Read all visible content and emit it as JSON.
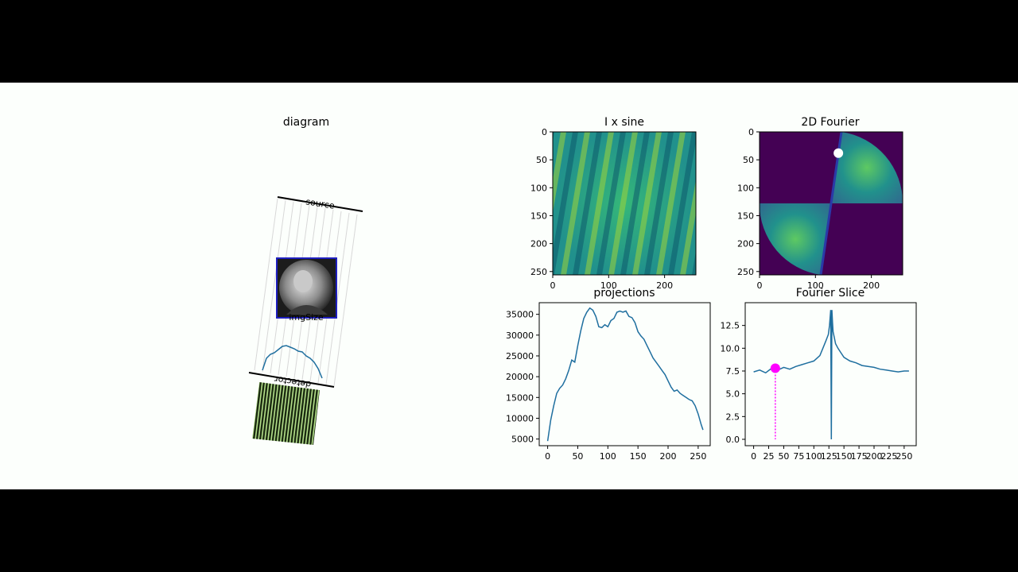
{
  "colors": {
    "frame_bg": "#000000",
    "figure_bg": "#fcfffc",
    "line": "#1f6f9f",
    "viridis_dark": "#440154",
    "viridis_mid": "#21918c",
    "viridis_bright": "#fde725",
    "marker": "#ff00ff",
    "white_marker": "#ffffff"
  },
  "diagram": {
    "title": "diagram",
    "source_label": "source",
    "detector_label": "detector",
    "imgsize_label": "imgSize"
  },
  "chart_data": [
    {
      "id": "i_x_sine",
      "type": "heatmap",
      "title": "I x sine",
      "x_ticks": [
        "0",
        "100",
        "200"
      ],
      "y_ticks": [
        "0",
        "50",
        "100",
        "150",
        "200",
        "250"
      ],
      "xlim": [
        0,
        256
      ],
      "ylim": [
        256,
        0
      ]
    },
    {
      "id": "fourier_2d",
      "type": "heatmap",
      "title": "2D Fourier",
      "x_ticks": [
        "0",
        "100",
        "200"
      ],
      "y_ticks": [
        "0",
        "50",
        "100",
        "150",
        "200",
        "250"
      ],
      "xlim": [
        0,
        256
      ],
      "ylim": [
        256,
        0
      ],
      "marker": {
        "x": 141,
        "y": 38
      }
    },
    {
      "id": "projections",
      "type": "line",
      "title": "projections",
      "xlim": [
        -14,
        270
      ],
      "ylim": [
        3400,
        37800
      ],
      "x_ticks": [
        0,
        50,
        100,
        150,
        200,
        250
      ],
      "y_ticks": [
        5000,
        10000,
        15000,
        20000,
        25000,
        30000,
        35000
      ],
      "x": [
        0,
        5,
        10,
        15,
        20,
        25,
        30,
        35,
        40,
        45,
        50,
        55,
        60,
        65,
        70,
        75,
        80,
        85,
        90,
        95,
        100,
        105,
        110,
        115,
        120,
        125,
        130,
        135,
        140,
        145,
        150,
        155,
        160,
        165,
        170,
        175,
        180,
        185,
        190,
        195,
        200,
        205,
        210,
        215,
        220,
        225,
        230,
        235,
        240,
        245,
        250,
        255,
        258
      ],
      "y": [
        4500,
        9500,
        13000,
        16000,
        17200,
        18000,
        19500,
        21500,
        24000,
        23500,
        27500,
        31000,
        34000,
        35500,
        36500,
        36000,
        34500,
        32000,
        31800,
        32500,
        32000,
        33500,
        34000,
        35500,
        35800,
        35500,
        35800,
        34500,
        34200,
        33000,
        30800,
        29800,
        29000,
        27500,
        26000,
        24500,
        23500,
        22500,
        21500,
        20500,
        19000,
        17500,
        16500,
        16800,
        16000,
        15500,
        15000,
        14500,
        14200,
        13000,
        11000,
        8500,
        7200
      ]
    },
    {
      "id": "fourier_slice",
      "type": "line",
      "title": "Fourier Slice",
      "xlim": [
        -14,
        270
      ],
      "ylim": [
        -0.7,
        15
      ],
      "x_ticks": [
        0,
        25,
        50,
        75,
        100,
        125,
        150,
        175,
        200,
        225,
        250
      ],
      "y_ticks": [
        0.0,
        2.5,
        5.0,
        7.5,
        10.0,
        12.5
      ],
      "y_tick_labels": [
        "0.0",
        "2.5",
        "5.0",
        "7.5",
        "10.0",
        "12.5"
      ],
      "x": [
        0,
        10,
        20,
        30,
        40,
        50,
        60,
        70,
        80,
        90,
        100,
        110,
        115,
        120,
        124,
        126,
        128,
        129,
        130,
        131,
        132,
        134,
        136,
        140,
        145,
        150,
        160,
        170,
        180,
        190,
        200,
        210,
        220,
        230,
        240,
        250,
        258
      ],
      "y": [
        7.4,
        7.6,
        7.3,
        7.8,
        7.6,
        7.9,
        7.7,
        8.0,
        8.2,
        8.4,
        8.6,
        9.2,
        10.0,
        10.8,
        11.5,
        12.5,
        14.2,
        0.0,
        14.2,
        12.8,
        11.8,
        11.2,
        10.5,
        10.0,
        9.5,
        9.0,
        8.6,
        8.4,
        8.1,
        8.0,
        7.9,
        7.7,
        7.6,
        7.5,
        7.4,
        7.5,
        7.5
      ],
      "marker": {
        "x": 36,
        "y": 7.8
      }
    }
  ]
}
